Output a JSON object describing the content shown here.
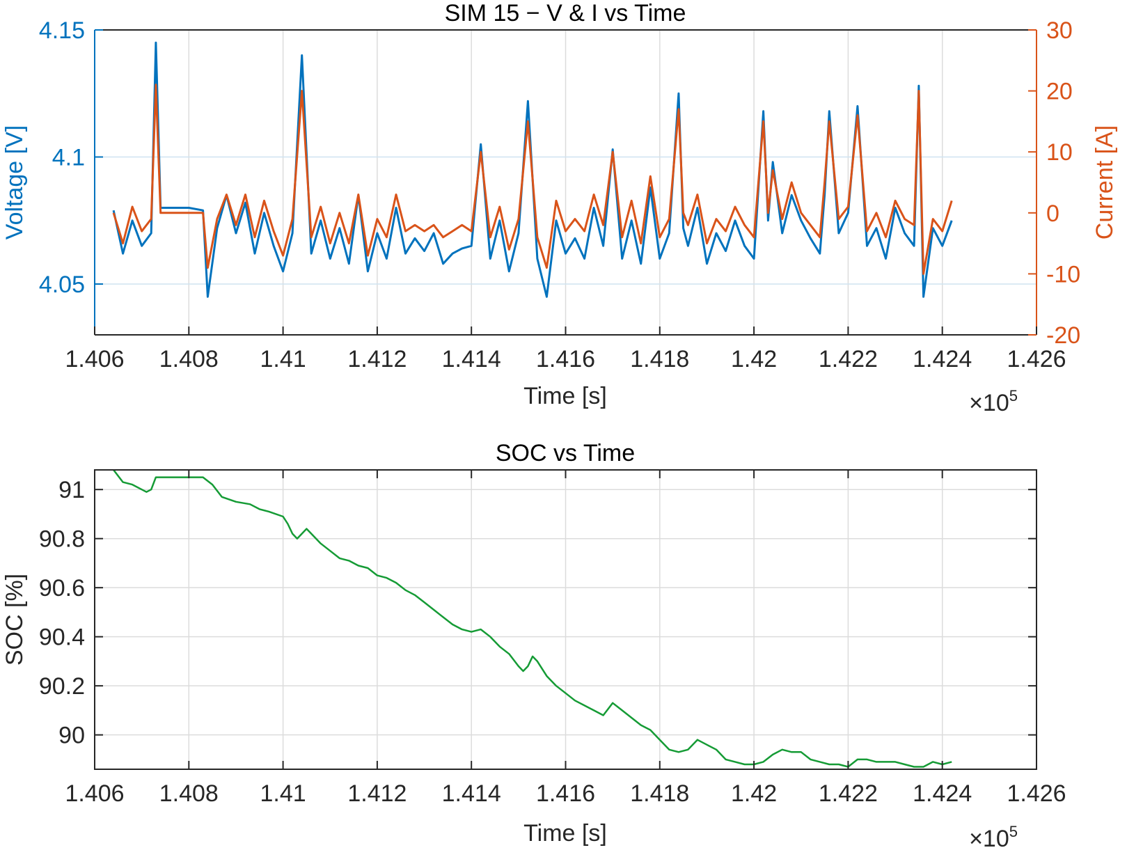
{
  "chart_data": [
    {
      "type": "line",
      "title": "SIM 15  −  V & I vs Time",
      "xlabel": "Time  [s]",
      "x_exponent_label": "×10",
      "x_exponent_power": "5",
      "xlim": [
        1.406,
        1.426
      ],
      "xticks": [
        1.406,
        1.408,
        1.41,
        1.412,
        1.414,
        1.416,
        1.418,
        1.42,
        1.422,
        1.424,
        1.426
      ],
      "xtick_labels": [
        "1.406",
        "1.408",
        "1.41",
        "1.412",
        "1.414",
        "1.416",
        "1.418",
        "1.42",
        "1.422",
        "1.424",
        "1.426"
      ],
      "grid": true,
      "colors": {
        "voltage": "#0072BD",
        "current": "#D95319"
      },
      "left_axis": {
        "label": "Voltage  [V]",
        "ylim": [
          4.03,
          4.15
        ],
        "ticks": [
          4.05,
          4.1,
          4.15
        ],
        "tick_labels": [
          "4.05",
          "4.1",
          "4.15"
        ]
      },
      "right_axis": {
        "label": "Current  [A]",
        "ylim": [
          -20,
          30
        ],
        "ticks": [
          -20,
          -10,
          0,
          10,
          20,
          30
        ],
        "tick_labels": [
          "-20",
          "-10",
          "0",
          "10",
          "20",
          "30"
        ]
      },
      "series": [
        {
          "axis": "left",
          "x": [
            1.4064,
            1.4066,
            1.4068,
            1.407,
            1.4072,
            1.4073,
            1.4074,
            1.4076,
            1.408,
            1.4083,
            1.4084,
            1.4086,
            1.4088,
            1.409,
            1.4092,
            1.4094,
            1.4096,
            1.4098,
            1.41,
            1.4102,
            1.4104,
            1.4106,
            1.4108,
            1.411,
            1.4112,
            1.4114,
            1.4116,
            1.4118,
            1.412,
            1.4122,
            1.4124,
            1.4126,
            1.4128,
            1.413,
            1.4132,
            1.4134,
            1.4136,
            1.4138,
            1.414,
            1.4142,
            1.4144,
            1.4146,
            1.4148,
            1.415,
            1.4152,
            1.4154,
            1.4156,
            1.4158,
            1.416,
            1.4162,
            1.4164,
            1.4166,
            1.4168,
            1.417,
            1.4172,
            1.4174,
            1.4176,
            1.4178,
            1.418,
            1.4182,
            1.4184,
            1.4185,
            1.4186,
            1.4188,
            1.419,
            1.4192,
            1.4194,
            1.4196,
            1.4198,
            1.42,
            1.4202,
            1.4203,
            1.4204,
            1.4206,
            1.4208,
            1.421,
            1.4212,
            1.4214,
            1.4215,
            1.4216,
            1.4218,
            1.422,
            1.4222,
            1.4224,
            1.4226,
            1.4228,
            1.423,
            1.4232,
            1.4234,
            1.4235,
            1.4236,
            1.4238,
            1.424,
            1.4242
          ],
          "y": [
            4.079,
            4.062,
            4.075,
            4.065,
            4.07,
            4.145,
            4.08,
            4.08,
            4.08,
            4.079,
            4.045,
            4.072,
            4.085,
            4.07,
            4.082,
            4.062,
            4.078,
            4.065,
            4.055,
            4.07,
            4.14,
            4.062,
            4.075,
            4.06,
            4.072,
            4.058,
            4.085,
            4.055,
            4.07,
            4.06,
            4.08,
            4.062,
            4.068,
            4.063,
            4.07,
            4.058,
            4.062,
            4.064,
            4.065,
            4.105,
            4.06,
            4.075,
            4.055,
            4.07,
            4.122,
            4.06,
            4.045,
            4.075,
            4.062,
            4.068,
            4.06,
            4.08,
            4.065,
            4.103,
            4.06,
            4.075,
            4.058,
            4.088,
            4.06,
            4.07,
            4.125,
            4.072,
            4.065,
            4.08,
            4.058,
            4.07,
            4.063,
            4.075,
            4.065,
            4.06,
            4.118,
            4.075,
            4.098,
            4.07,
            4.085,
            4.075,
            4.068,
            4.062,
            4.085,
            4.118,
            4.07,
            4.078,
            4.12,
            4.065,
            4.072,
            4.06,
            4.08,
            4.07,
            4.065,
            4.128,
            4.045,
            4.072,
            4.065,
            4.075
          ]
        },
        {
          "axis": "right",
          "x": [
            1.4064,
            1.4066,
            1.4068,
            1.407,
            1.4072,
            1.4073,
            1.4074,
            1.4076,
            1.408,
            1.4083,
            1.4084,
            1.4086,
            1.4088,
            1.409,
            1.4092,
            1.4094,
            1.4096,
            1.4098,
            1.41,
            1.4102,
            1.4104,
            1.4106,
            1.4108,
            1.411,
            1.4112,
            1.4114,
            1.4116,
            1.4118,
            1.412,
            1.4122,
            1.4124,
            1.4126,
            1.4128,
            1.413,
            1.4132,
            1.4134,
            1.4136,
            1.4138,
            1.414,
            1.4142,
            1.4144,
            1.4146,
            1.4148,
            1.415,
            1.4152,
            1.4154,
            1.4156,
            1.4158,
            1.416,
            1.4162,
            1.4164,
            1.4166,
            1.4168,
            1.417,
            1.4172,
            1.4174,
            1.4176,
            1.4178,
            1.418,
            1.4182,
            1.4184,
            1.4185,
            1.4186,
            1.4188,
            1.419,
            1.4192,
            1.4194,
            1.4196,
            1.4198,
            1.42,
            1.4202,
            1.4203,
            1.4204,
            1.4206,
            1.4208,
            1.421,
            1.4212,
            1.4214,
            1.4215,
            1.4216,
            1.4218,
            1.422,
            1.4222,
            1.4224,
            1.4226,
            1.4228,
            1.423,
            1.4232,
            1.4234,
            1.4235,
            1.4236,
            1.4238,
            1.424,
            1.4242
          ],
          "y": [
            0,
            -5,
            1,
            -3,
            -1,
            21,
            0,
            0,
            0,
            0,
            -9,
            -1,
            3,
            -2,
            3,
            -4,
            2,
            -3,
            -7,
            -1,
            20,
            -4,
            1,
            -5,
            0,
            -5,
            3,
            -7,
            -1,
            -4,
            3,
            -3,
            -2,
            -3,
            -2,
            -4,
            -3,
            -2,
            -3,
            10,
            -4,
            1,
            -6,
            -1,
            15,
            -4,
            -9,
            2,
            -3,
            -1,
            -3,
            3,
            -2,
            10,
            -4,
            2,
            -5,
            6,
            -4,
            -1,
            17,
            0,
            -2,
            3,
            -5,
            -1,
            -3,
            1,
            -2,
            -4,
            15,
            0,
            7,
            -1,
            5,
            0,
            -2,
            -4,
            5,
            15,
            -1,
            1,
            16,
            -3,
            0,
            -4,
            2,
            -1,
            -2,
            20,
            -10,
            -1,
            -3,
            2
          ]
        }
      ]
    },
    {
      "type": "line",
      "title": "SOC vs Time",
      "xlabel": "Time  [s]",
      "ylabel": "SOC  [%]",
      "x_exponent_label": "×10",
      "x_exponent_power": "5",
      "xlim": [
        1.406,
        1.426
      ],
      "ylim": [
        89.86,
        91.08
      ],
      "xticks": [
        1.406,
        1.408,
        1.41,
        1.412,
        1.414,
        1.416,
        1.418,
        1.42,
        1.422,
        1.424,
        1.426
      ],
      "xtick_labels": [
        "1.406",
        "1.408",
        "1.41",
        "1.412",
        "1.414",
        "1.416",
        "1.418",
        "1.42",
        "1.422",
        "1.424",
        "1.426"
      ],
      "yticks": [
        90,
        90.2,
        90.4,
        90.6,
        90.8,
        91
      ],
      "ytick_labels": [
        "90",
        "90.2",
        "90.4",
        "90.6",
        "90.8",
        "91"
      ],
      "grid": true,
      "colors": {
        "soc": "#159B35"
      },
      "series": [
        {
          "x": [
            1.4064,
            1.4066,
            1.4068,
            1.407,
            1.4071,
            1.4072,
            1.4073,
            1.4074,
            1.4076,
            1.408,
            1.4083,
            1.4085,
            1.4087,
            1.409,
            1.4093,
            1.4095,
            1.4097,
            1.41,
            1.4101,
            1.4102,
            1.4103,
            1.4104,
            1.4105,
            1.4106,
            1.4108,
            1.411,
            1.4112,
            1.4114,
            1.4116,
            1.4118,
            1.412,
            1.4122,
            1.4124,
            1.4126,
            1.4128,
            1.413,
            1.4132,
            1.4134,
            1.4136,
            1.4138,
            1.414,
            1.4142,
            1.4144,
            1.4146,
            1.4148,
            1.415,
            1.4151,
            1.4152,
            1.4153,
            1.4154,
            1.4156,
            1.4158,
            1.416,
            1.4162,
            1.4164,
            1.4166,
            1.4168,
            1.417,
            1.4172,
            1.4174,
            1.4176,
            1.4178,
            1.418,
            1.4182,
            1.4184,
            1.4186,
            1.4188,
            1.419,
            1.4192,
            1.4194,
            1.4196,
            1.4198,
            1.42,
            1.4202,
            1.4204,
            1.4206,
            1.4208,
            1.421,
            1.4212,
            1.4214,
            1.4216,
            1.4218,
            1.422,
            1.4222,
            1.4224,
            1.4226,
            1.4228,
            1.423,
            1.4232,
            1.4234,
            1.4236,
            1.4238,
            1.424,
            1.4242
          ],
          "y": [
            91.08,
            91.03,
            91.02,
            91.0,
            90.99,
            91.0,
            91.05,
            91.05,
            91.05,
            91.05,
            91.05,
            91.02,
            90.97,
            90.95,
            90.94,
            90.92,
            90.91,
            90.89,
            90.86,
            90.82,
            90.8,
            90.82,
            90.84,
            90.82,
            90.78,
            90.75,
            90.72,
            90.71,
            90.69,
            90.68,
            90.65,
            90.64,
            90.62,
            90.59,
            90.57,
            90.54,
            90.51,
            90.48,
            90.45,
            90.43,
            90.42,
            90.43,
            90.4,
            90.36,
            90.33,
            90.28,
            90.26,
            90.28,
            90.32,
            90.3,
            90.24,
            90.2,
            90.17,
            90.14,
            90.12,
            90.1,
            90.08,
            90.13,
            90.1,
            90.07,
            90.04,
            90.02,
            89.98,
            89.94,
            89.93,
            89.94,
            89.98,
            89.96,
            89.94,
            89.9,
            89.89,
            89.88,
            89.88,
            89.89,
            89.92,
            89.94,
            89.93,
            89.93,
            89.9,
            89.89,
            89.88,
            89.88,
            89.87,
            89.9,
            89.9,
            89.89,
            89.89,
            89.89,
            89.88,
            89.87,
            89.87,
            89.89,
            89.88,
            89.89
          ]
        }
      ]
    }
  ]
}
